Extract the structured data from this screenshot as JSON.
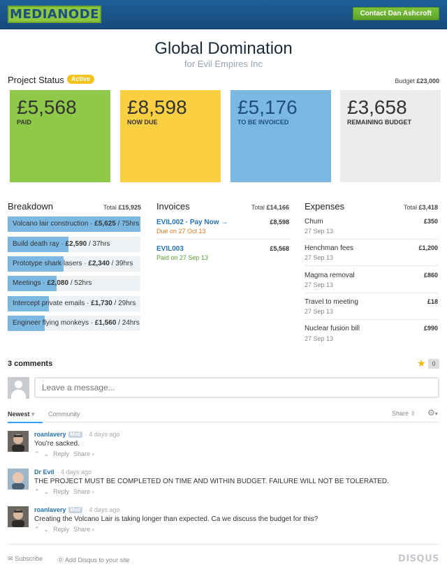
{
  "header": {
    "logo": "MEDIANODE",
    "contact_button": "Contact Dan Ashcroft"
  },
  "project": {
    "title": "Global Domination",
    "client": "for Evil Empires Inc",
    "status_label": "Project Status",
    "status_badge": "Active",
    "budget_label": "Budget",
    "budget_value": "£23,000"
  },
  "tiles": [
    {
      "amount": "£5,568",
      "label": "PAID",
      "color": "#8fc94a"
    },
    {
      "amount": "£8,598",
      "label": "NOW DUE",
      "color": "#fad042"
    },
    {
      "amount": "£5,176",
      "label": "TO BE INVOICED",
      "color": "#7bb8e2"
    },
    {
      "amount": "£3,658",
      "label": "REMAINING BUDGET",
      "color": "#ececec"
    }
  ],
  "breakdown": {
    "heading": "Breakdown",
    "total_label": "Total",
    "total_value": "£15,925",
    "items": [
      {
        "name": "Volcano lair construction",
        "amount": "£5,625",
        "hours": "75hrs",
        "fill": 1.0
      },
      {
        "name": "Build death ray",
        "amount": "£2,590",
        "hours": "37hrs",
        "fill": 0.46
      },
      {
        "name": "Prototype shark lasers",
        "amount": "£2,340",
        "hours": "39hrs",
        "fill": 0.42
      },
      {
        "name": "Meetings",
        "amount": "£2,080",
        "hours": "52hrs",
        "fill": 0.37
      },
      {
        "name": "Intercept private emails",
        "amount": "£1,730",
        "hours": "29hrs",
        "fill": 0.31
      },
      {
        "name": "Engineer flying monkeys",
        "amount": "£1,560",
        "hours": "24hrs",
        "fill": 0.28
      }
    ]
  },
  "invoices": {
    "heading": "Invoices",
    "total_label": "Total",
    "total_value": "£14,166",
    "items": [
      {
        "id": "EVIL002",
        "pay_now": "Pay Now →",
        "amount": "£8,598",
        "status": "Due on 27 Oct 13",
        "status_color": "#e8791e"
      },
      {
        "id": "EVIL003",
        "pay_now": "",
        "amount": "£5,568",
        "status": "Paid on 27 Sep 13",
        "status_color": "#5aa02c"
      }
    ]
  },
  "expenses": {
    "heading": "Expenses",
    "total_label": "Total",
    "total_value": "£3,418",
    "items": [
      {
        "name": "Chum",
        "date": "27 Sep 13",
        "amount": "£350"
      },
      {
        "name": "Henchman fees",
        "date": "27 Sep 13",
        "amount": "£1,200"
      },
      {
        "name": "Magma removal",
        "date": "27 Sep 13",
        "amount": "£860"
      },
      {
        "name": "Travel to meeting",
        "date": "27 Sep 13",
        "amount": "£18"
      },
      {
        "name": "Nuclear fusion bill",
        "date": "27 Sep 13",
        "amount": "£990"
      }
    ]
  },
  "comments": {
    "count_label": "3 comments",
    "star_count": "0",
    "placeholder": "Leave a message...",
    "tab_newest": "Newest",
    "tab_community": "Community",
    "share": "Share",
    "items": [
      {
        "user": "roanlavery",
        "mod": "Mod",
        "time": "4 days ago",
        "text": "You're sacked.",
        "reply": "Reply",
        "share": "Share ›"
      },
      {
        "user": "Dr Evil",
        "mod": "",
        "time": "4 days ago",
        "text": "THE PROJECT MUST BE COMPLETED ON TIME AND WITHIN BUDGET. FAILURE WILL NOT BE TOLERATED.",
        "reply": "Reply",
        "share": "Share ›"
      },
      {
        "user": "roanlavery",
        "mod": "Mod",
        "time": "4 days ago",
        "text": "Creating the Volcano Lair is taking longer than expected. Ca we discuss the budget for this?",
        "reply": "Reply",
        "share": "Share ›"
      }
    ],
    "subscribe": "Subscribe",
    "add_disqus": "Add Disqus to your site",
    "disqus_logo": "DISQUS"
  }
}
